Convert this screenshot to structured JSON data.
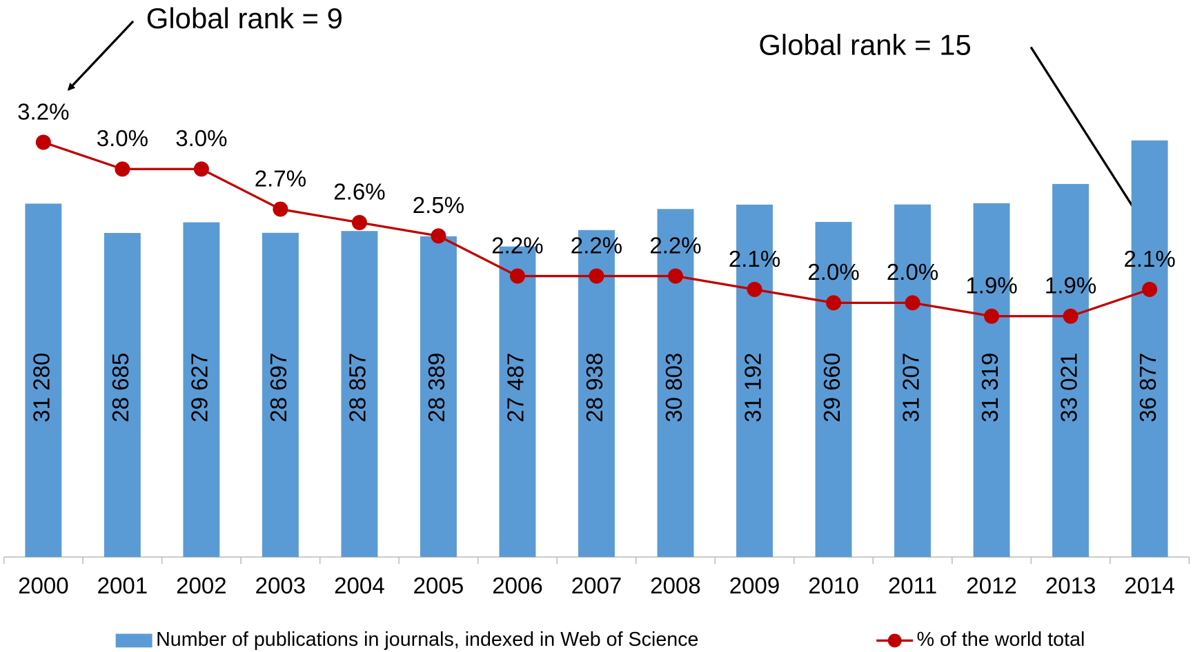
{
  "chart_data": {
    "type": "bar",
    "categories": [
      "2000",
      "2001",
      "2002",
      "2003",
      "2004",
      "2005",
      "2006",
      "2007",
      "2008",
      "2009",
      "2010",
      "2011",
      "2012",
      "2013",
      "2014"
    ],
    "ylim": [
      0,
      45000
    ],
    "y2lim": [
      0.1,
      3.9
    ],
    "series": [
      {
        "name": "Number of publications in journals, indexed in Web of Science",
        "type": "bar",
        "color": "#5b9bd5",
        "values": [
          31280,
          28685,
          29627,
          28697,
          28857,
          28389,
          27487,
          28938,
          30803,
          31192,
          29660,
          31207,
          31319,
          33021,
          36877
        ],
        "value_labels": [
          "31 280",
          "28 685",
          "29 627",
          "28 697",
          "28 857",
          "28 389",
          "27 487",
          "28 938",
          "30 803",
          "31 192",
          "29 660",
          "31 207",
          "31 319",
          "33 021",
          "36 877"
        ]
      },
      {
        "name": "% of the world total",
        "type": "line",
        "axis": "y2",
        "color": "#c00000",
        "values": [
          3.2,
          3.0,
          3.0,
          2.7,
          2.6,
          2.5,
          2.2,
          2.2,
          2.2,
          2.1,
          2.0,
          2.0,
          1.9,
          1.9,
          2.1
        ],
        "value_labels": [
          "3.2%",
          "3.0%",
          "3.0%",
          "2.7%",
          "2.6%",
          "2.5%",
          "2.2%",
          "2.2%",
          "2.2%",
          "2.1%",
          "2.0%",
          "2.0%",
          "1.9%",
          "1.9%",
          "2.1%"
        ]
      }
    ],
    "annotations": [
      "Global rank = 9",
      "Global rank = 15"
    ]
  }
}
